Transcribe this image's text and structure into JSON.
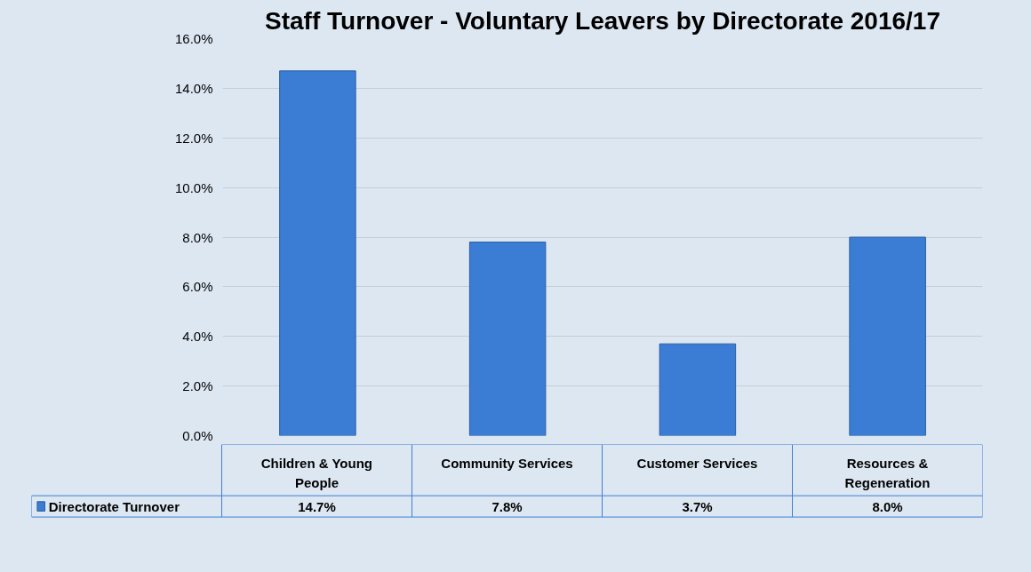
{
  "chart_data": {
    "type": "bar",
    "title": "Staff Turnover - Voluntary Leavers by Directorate 2016/17",
    "categories": [
      "Children & Young People",
      "Community Services",
      "Customer Services",
      "Resources & Regeneration"
    ],
    "series": [
      {
        "name": "Directorate Turnover",
        "color": "#3b7dd4",
        "values": [
          14.7,
          7.8,
          3.7,
          8.0
        ]
      }
    ],
    "value_labels": [
      "14.7%",
      "7.8%",
      "3.7%",
      "8.0%"
    ],
    "ylim": [
      0,
      16
    ],
    "yticks": [
      {
        "value": 0,
        "label": "0.0%"
      },
      {
        "value": 2,
        "label": "2.0%"
      },
      {
        "value": 4,
        "label": "4.0%"
      },
      {
        "value": 6,
        "label": "6.0%"
      },
      {
        "value": 8,
        "label": "8.0%"
      },
      {
        "value": 10,
        "label": "10.0%"
      },
      {
        "value": 12,
        "label": "12.0%"
      },
      {
        "value": 14,
        "label": "14.0%"
      },
      {
        "value": 16,
        "label": "16.0%"
      }
    ],
    "grid": "y",
    "legend": "bottom left"
  }
}
